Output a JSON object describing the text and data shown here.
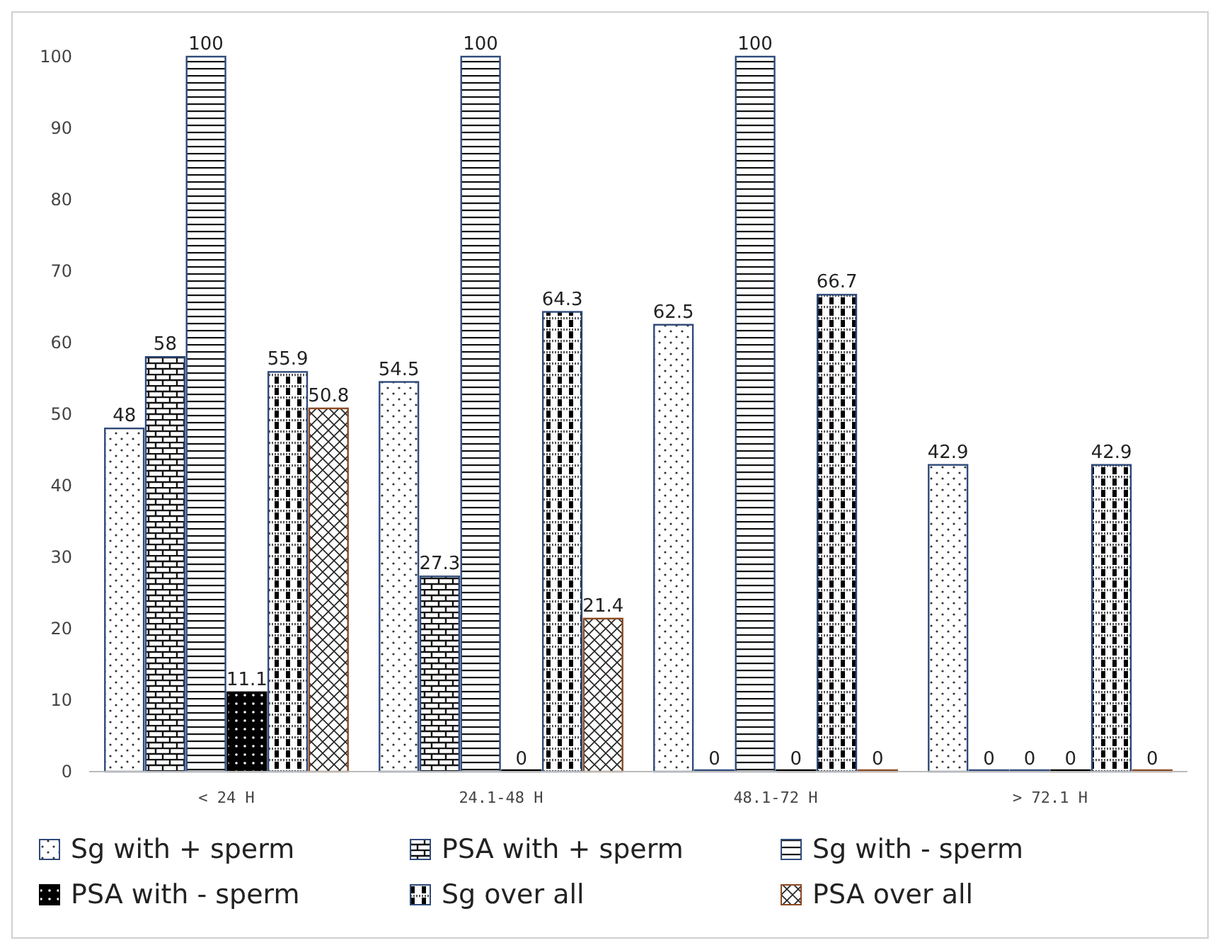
{
  "chart_data": {
    "type": "bar",
    "categories": [
      "< 24 H",
      "24.1-48 H",
      "48.1-72 H",
      "> 72.1 H"
    ],
    "series": [
      {
        "name": "Sg with + sperm",
        "color": "#2f4a7a",
        "values": [
          48,
          54.5,
          62.5,
          42.9
        ]
      },
      {
        "name": "PSA with + sperm",
        "color": "#2f4a7a",
        "values": [
          58,
          27.3,
          0,
          0
        ]
      },
      {
        "name": "Sg with - sperm",
        "color": "#2f4a7a",
        "values": [
          100,
          100,
          100,
          0
        ]
      },
      {
        "name": "PSA with - sperm",
        "color": "#000000",
        "values": [
          11.1,
          0,
          0,
          0
        ]
      },
      {
        "name": "Sg over all",
        "color": "#2f4a7a",
        "values": [
          55.9,
          64.3,
          66.7,
          42.9
        ]
      },
      {
        "name": "PSA over all",
        "color": "#8b4a22",
        "values": [
          50.8,
          21.4,
          0,
          0
        ]
      }
    ],
    "ylim": [
      0,
      100
    ],
    "yticks": [
      0,
      10,
      20,
      30,
      40,
      50,
      60,
      70,
      80,
      90,
      100
    ],
    "data_labels": true,
    "legend": "bottom",
    "grid": false
  }
}
